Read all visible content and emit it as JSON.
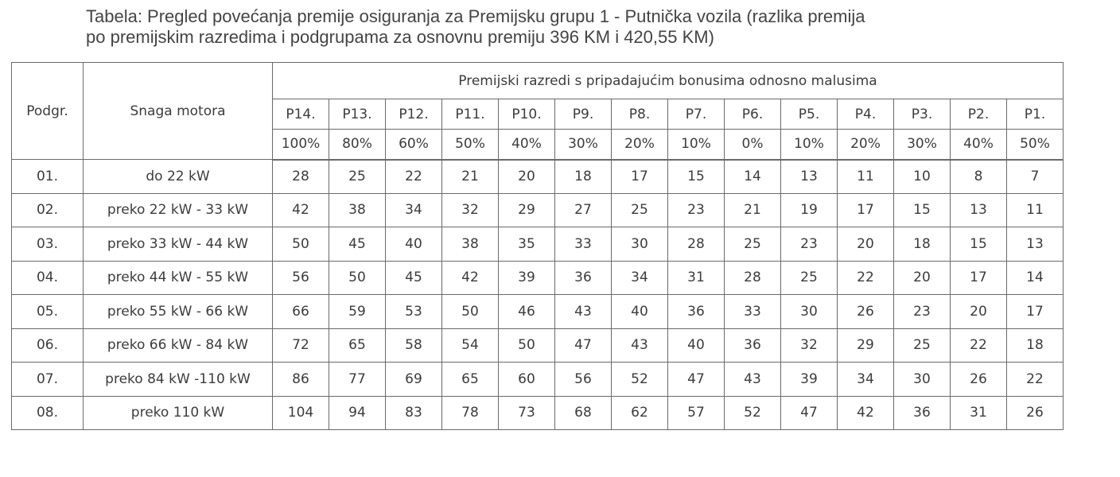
{
  "caption": {
    "line1": "Tabela: Pregled povećanja premije osiguranja za Premijsku grupu 1 - Putnička vozila (razlika premija",
    "line2": "po premijskim razredima i podgrupama za osnovnu premiju 396 KM i 420,55 KM)"
  },
  "table": {
    "col_subgroup": "Podgr.",
    "col_power": "Snaga motora",
    "span_header": "Premijski razredi s pripadajućim bonusima odnosno malusima",
    "classes": [
      "P14.",
      "P13.",
      "P12.",
      "P11.",
      "P10.",
      "P9.",
      "P8.",
      "P7.",
      "P6.",
      "P5.",
      "P4.",
      "P3.",
      "P2.",
      "P1."
    ],
    "percentages": [
      "100%",
      "80%",
      "60%",
      "50%",
      "40%",
      "30%",
      "20%",
      "10%",
      "0%",
      "10%",
      "20%",
      "30%",
      "40%",
      "50%"
    ],
    "rows": [
      {
        "subgroup": "01.",
        "power": "do 22 kW",
        "values": [
          "28",
          "25",
          "22",
          "21",
          "20",
          "18",
          "17",
          "15",
          "14",
          "13",
          "11",
          "10",
          "8",
          "7"
        ]
      },
      {
        "subgroup": "02.",
        "power": "preko 22 kW - 33 kW",
        "values": [
          "42",
          "38",
          "34",
          "32",
          "29",
          "27",
          "25",
          "23",
          "21",
          "19",
          "17",
          "15",
          "13",
          "11"
        ]
      },
      {
        "subgroup": "03.",
        "power": "preko 33 kW - 44 kW",
        "values": [
          "50",
          "45",
          "40",
          "38",
          "35",
          "33",
          "30",
          "28",
          "25",
          "23",
          "20",
          "18",
          "15",
          "13"
        ]
      },
      {
        "subgroup": "04.",
        "power": "preko 44 kW - 55 kW",
        "values": [
          "56",
          "50",
          "45",
          "42",
          "39",
          "36",
          "34",
          "31",
          "28",
          "25",
          "22",
          "20",
          "17",
          "14"
        ]
      },
      {
        "subgroup": "05.",
        "power": "preko 55 kW - 66 kW",
        "values": [
          "66",
          "59",
          "53",
          "50",
          "46",
          "43",
          "40",
          "36",
          "33",
          "30",
          "26",
          "23",
          "20",
          "17"
        ]
      },
      {
        "subgroup": "06.",
        "power": "preko 66 kW - 84 kW",
        "values": [
          "72",
          "65",
          "58",
          "54",
          "50",
          "47",
          "43",
          "40",
          "36",
          "32",
          "29",
          "25",
          "22",
          "18"
        ]
      },
      {
        "subgroup": "07.",
        "power": "preko 84 kW -110 kW",
        "values": [
          "86",
          "77",
          "69",
          "65",
          "60",
          "56",
          "52",
          "47",
          "43",
          "39",
          "34",
          "30",
          "26",
          "22"
        ]
      },
      {
        "subgroup": "08.",
        "power": "preko 110 kW",
        "values": [
          "104",
          "94",
          "83",
          "78",
          "73",
          "68",
          "62",
          "57",
          "52",
          "47",
          "42",
          "36",
          "31",
          "26"
        ]
      }
    ]
  }
}
